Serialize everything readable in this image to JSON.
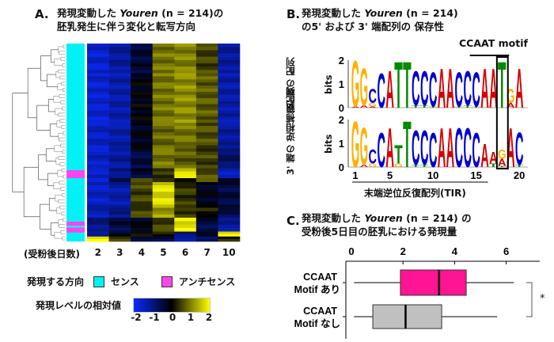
{
  "panel_a": {
    "label": "A.",
    "title_line1_pre": "発現変動した ",
    "title_italic": "Youren",
    "title_line1_post": " (n = 214)の",
    "title_line2": "胚乳発生に伴う変化と転写方向",
    "days_label": "(受粉後日数)",
    "legend_direction_label": "発現する方向",
    "legend_sense": "センス",
    "legend_antisense": "アンチセンス",
    "colorbar_label": "発現レベルの相対値",
    "colorbar_ticks": [
      "-2",
      "-1",
      "0",
      "1",
      "2"
    ],
    "colors": {
      "sense": "#00f2f5",
      "antisense": "#ff44ee",
      "low": "#0a2aff",
      "mid": "#000000",
      "high": "#ffff00"
    }
  },
  "panel_b": {
    "label": "B.",
    "title_line1_pre": "発現変動した ",
    "title_italic": "Youren",
    "title_line1_post": " (n = 214)",
    "title_line2": "の5' および 3' 端配列の 保存性",
    "motif_label": "CCAAT motif",
    "row1_label": "5' 端の 配列",
    "row2_label": "3' 端の 逆相補鎖配列",
    "bits_label": "bits",
    "y_ticks": [
      "2",
      "1",
      "0"
    ],
    "x_ticks": [
      "1",
      "5",
      "10",
      "15",
      "20"
    ],
    "tir_label": "末端逆位反復配列(TIR)",
    "letter_colors": {
      "A": "#d40000",
      "C": "#0000cc",
      "G": "#ffb000",
      "T": "#008a00"
    }
  },
  "panel_c": {
    "label": "C.",
    "title_line1_pre": "発現変動した ",
    "title_italic": "Youren",
    "title_line1_post": " (n = 214) の",
    "title_line2": "受粉後5日目の胚乳における発現量",
    "significance": "*"
  },
  "chart_data": [
    {
      "type": "heatmap",
      "title": "発現変動した Youren (n = 214)の胚乳発生に伴う変化と転写方向",
      "xlabel": "(受粉後日数)",
      "columns": [
        "2",
        "3",
        "4",
        "5",
        "6",
        "7",
        "10"
      ],
      "value_range": [
        -2,
        2
      ],
      "row_blocks": [
        {
          "row_fraction": 0.15,
          "values": [
            -1.6,
            -1.2,
            -0.4,
            0.9,
            1.0,
            0.5,
            -1.2
          ]
        },
        {
          "row_fraction": 0.25,
          "values": [
            -1.6,
            -1.3,
            -0.1,
            0.9,
            1.1,
            0.7,
            -1.3
          ]
        },
        {
          "row_fraction": 0.13,
          "values": [
            -1.5,
            -1.3,
            -0.2,
            0.8,
            0.9,
            0.6,
            -1.2
          ]
        },
        {
          "row_fraction": 0.1,
          "values": [
            -1.5,
            -1.2,
            -0.5,
            0.9,
            0.7,
            0.5,
            -0.8
          ]
        },
        {
          "row_fraction": 0.05,
          "values": [
            -1.5,
            -1.0,
            -0.4,
            0.3,
            1.7,
            0.6,
            -1.4
          ]
        },
        {
          "row_fraction": 0.02,
          "values": [
            -1.8,
            -0.8,
            0.5,
            0.5,
            0.3,
            0.8,
            -0.5
          ]
        },
        {
          "row_fraction": 0.13,
          "values": [
            -1.5,
            -1.3,
            0.5,
            1.7,
            0.4,
            -0.2,
            -0.5
          ]
        },
        {
          "row_fraction": 0.05,
          "values": [
            -1.4,
            -1.1,
            0.5,
            1.2,
            0.5,
            0.2,
            -0.6
          ]
        },
        {
          "row_fraction": 0.07,
          "values": [
            -1.0,
            -0.5,
            -0.2,
            0.5,
            1.8,
            -0.5,
            -1.2
          ]
        },
        {
          "row_fraction": 0.025,
          "values": [
            -1.3,
            -0.2,
            0.3,
            0.3,
            -1.0,
            -0.4,
            1.8
          ]
        },
        {
          "row_fraction": 0.025,
          "values": [
            1.8,
            0.6,
            -0.3,
            -0.5,
            -1.4,
            -0.9,
            0.3
          ]
        }
      ],
      "direction_segments": [
        {
          "from": 0.0,
          "to": 0.64,
          "direction": "sense"
        },
        {
          "from": 0.64,
          "to": 0.68,
          "direction": "antisense"
        },
        {
          "from": 0.68,
          "to": 1.0,
          "direction": "sense"
        },
        {
          "from": 0.9,
          "to": 0.92,
          "direction": "antisense"
        },
        {
          "from": 0.93,
          "to": 0.955,
          "direction": "antisense"
        }
      ]
    },
    {
      "type": "sequence_logo",
      "title": "5' 端の配列",
      "ylabel": "bits",
      "ylim": [
        0,
        2
      ],
      "positions": [
        [
          [
            "A",
            0.05
          ],
          [
            "G",
            2.0
          ]
        ],
        [
          [
            "A",
            0.1
          ],
          [
            "G",
            1.6
          ]
        ],
        [
          [
            "A",
            0.05
          ],
          [
            "G",
            0.15
          ],
          [
            "C",
            0.6
          ]
        ],
        [
          [
            "C",
            1.5
          ]
        ],
        [
          [
            "A",
            1.6
          ]
        ],
        [
          [
            "T",
            2.0
          ]
        ],
        [
          [
            "T",
            2.0
          ]
        ],
        [
          [
            "T",
            0.1
          ],
          [
            "C",
            1.5
          ]
        ],
        [
          [
            "T",
            0.1
          ],
          [
            "C",
            1.5
          ]
        ],
        [
          [
            "T",
            0.05
          ],
          [
            "C",
            1.5
          ]
        ],
        [
          [
            "A",
            1.7
          ]
        ],
        [
          [
            "A",
            1.7
          ]
        ],
        [
          [
            "T",
            0.05
          ],
          [
            "C",
            1.5
          ]
        ],
        [
          [
            "T",
            0.1
          ],
          [
            "C",
            1.5
          ]
        ],
        [
          [
            "T",
            0.05
          ],
          [
            "C",
            1.5
          ]
        ],
        [
          [
            "A",
            1.7
          ]
        ],
        [
          [
            "A",
            1.7
          ]
        ],
        [
          [
            "T",
            2.0
          ]
        ],
        [
          [
            "A",
            0.2
          ],
          [
            "G",
            0.6
          ]
        ],
        [
          [
            "A",
            1.7
          ]
        ]
      ]
    },
    {
      "type": "sequence_logo",
      "title": "3' 端の逆相補鎖配列",
      "ylabel": "bits",
      "ylim": [
        0,
        2
      ],
      "positions": [
        [
          [
            "G",
            2.0
          ]
        ],
        [
          [
            "A",
            0.1
          ],
          [
            "G",
            1.6
          ]
        ],
        [
          [
            "G",
            0.15
          ],
          [
            "C",
            0.6
          ]
        ],
        [
          [
            "C",
            1.5
          ]
        ],
        [
          [
            "A",
            1.7
          ]
        ],
        [
          [
            "G",
            0.15
          ],
          [
            "T",
            0.8
          ]
        ],
        [
          [
            "T",
            2.0
          ]
        ],
        [
          [
            "T",
            0.1
          ],
          [
            "C",
            1.5
          ]
        ],
        [
          [
            "T",
            0.1
          ],
          [
            "C",
            1.5
          ]
        ],
        [
          [
            "C",
            1.5
          ]
        ],
        [
          [
            "A",
            1.7
          ]
        ],
        [
          [
            "A",
            1.7
          ]
        ],
        [
          [
            "C",
            1.7
          ]
        ],
        [
          [
            "C",
            1.7
          ]
        ],
        [
          [
            "C",
            1.5
          ]
        ],
        [
          [
            "A",
            1.0
          ]
        ],
        [
          [
            "T",
            0.15
          ],
          [
            "A",
            0.5
          ]
        ],
        [
          [
            "T",
            0.05
          ],
          [
            "A",
            0.3
          ],
          [
            "G",
            0.4
          ]
        ],
        [
          [
            "A",
            1.7
          ]
        ],
        [
          [
            "T",
            0.1
          ],
          [
            "C",
            1.4
          ]
        ]
      ],
      "highlight_position": 18,
      "tir_range": [
        1,
        16
      ],
      "motif_range": [
        14,
        19
      ]
    },
    {
      "type": "box",
      "title": "発現変動した Youren (n = 214) の受粉後5日目の胚乳における発現量",
      "xlim": [
        0,
        7
      ],
      "x_ticks": [
        0,
        2,
        4,
        6
      ],
      "series": [
        {
          "name": "CCAAT Motif あり",
          "line1": "CCAAT",
          "line2": "Motif あり",
          "color": "#ff1493",
          "whisker_low": 0.1,
          "q1": 1.9,
          "median": 3.4,
          "q3": 4.45,
          "whisker_high": 6.3
        },
        {
          "name": "CCAAT Motif なし",
          "line1": "CCAAT",
          "line2": "Motif なし",
          "color": "#c0c0c0",
          "whisker_low": 0.1,
          "q1": 0.83,
          "median": 2.1,
          "q3": 3.5,
          "whisker_high": 5.65
        }
      ]
    }
  ]
}
